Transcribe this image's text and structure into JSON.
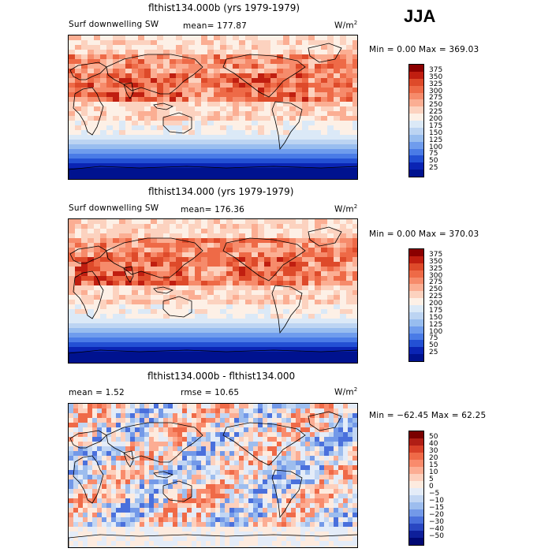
{
  "season": "JJA",
  "panels": [
    {
      "title": "flthist134.000b (yrs 1979-1979)",
      "left_label": "Surf downwelling SW",
      "stat_label": "mean= 177.87",
      "units": "W/m",
      "units_exp": "2",
      "minmax": "Min =    0.00 Max = 369.03",
      "colorbar_labels": [
        "375",
        "350",
        "325",
        "300",
        "275",
        "250",
        "225",
        "200",
        "175",
        "150",
        "125",
        "100",
        "75",
        "50",
        "25"
      ]
    },
    {
      "title": "flthist134.000 (yrs 1979-1979)",
      "left_label": "Surf downwelling SW",
      "stat_label": "mean= 176.36",
      "units": "W/m",
      "units_exp": "2",
      "minmax": "Min =    0.00 Max = 370.03",
      "colorbar_labels": [
        "375",
        "350",
        "325",
        "300",
        "275",
        "250",
        "225",
        "200",
        "175",
        "150",
        "125",
        "100",
        "75",
        "50",
        "25"
      ]
    },
    {
      "title": "flthist134.000b - flthist134.000",
      "left_label": "mean =    1.52",
      "stat_label": "rmse =  10.65",
      "units": "W/m",
      "units_exp": "2",
      "minmax": "Min = −62.45  Max =  62.25",
      "colorbar_labels": [
        "50",
        "40",
        "30",
        "20",
        "15",
        "10",
        "5",
        "0",
        "−5",
        "−10",
        "−15",
        "−20",
        "−30",
        "−40",
        "−50"
      ]
    }
  ],
  "colors": {
    "abs_scale": [
      "#8b0000",
      "#c01e10",
      "#de4a2a",
      "#ee6a47",
      "#f68b6b",
      "#fbae93",
      "#fcd2bf",
      "#fdf0e6",
      "#dbe9f7",
      "#bcd4f2",
      "#98bdef",
      "#6f9ced",
      "#4a7be6",
      "#2350d4",
      "#0a24b4",
      "#00128f"
    ],
    "diff_scale": [
      "#7a0000",
      "#b01e15",
      "#d84028",
      "#ef6a48",
      "#f98b6c",
      "#fcad93",
      "#fdd0bd",
      "#fdebdf",
      "#e4ecf8",
      "#c2d6f3",
      "#9dbdee",
      "#7399e8",
      "#4a70dc",
      "#2a47c2",
      "#0e1f9a",
      "#000873"
    ]
  },
  "chart_data": [
    {
      "type": "heatmap",
      "title": "flthist134.000b (yrs 1979-1979)",
      "variable": "Surf downwelling SW",
      "units": "W/m2",
      "season": "JJA",
      "mean": 177.87,
      "min": 0.0,
      "max": 369.03,
      "levels": [
        25,
        50,
        75,
        100,
        125,
        150,
        175,
        200,
        225,
        250,
        275,
        300,
        325,
        350,
        375
      ]
    },
    {
      "type": "heatmap",
      "title": "flthist134.000 (yrs 1979-1979)",
      "variable": "Surf downwelling SW",
      "units": "W/m2",
      "season": "JJA",
      "mean": 176.36,
      "min": 0.0,
      "max": 370.03,
      "levels": [
        25,
        50,
        75,
        100,
        125,
        150,
        175,
        200,
        225,
        250,
        275,
        300,
        325,
        350,
        375
      ]
    },
    {
      "type": "heatmap",
      "title": "flthist134.000b - flthist134.000",
      "units": "W/m2",
      "season": "JJA",
      "mean": 1.52,
      "rmse": 10.65,
      "min": -62.45,
      "max": 62.25,
      "levels": [
        -50,
        -40,
        -30,
        -20,
        -15,
        -10,
        -5,
        0,
        5,
        10,
        15,
        20,
        30,
        40,
        50
      ]
    }
  ]
}
